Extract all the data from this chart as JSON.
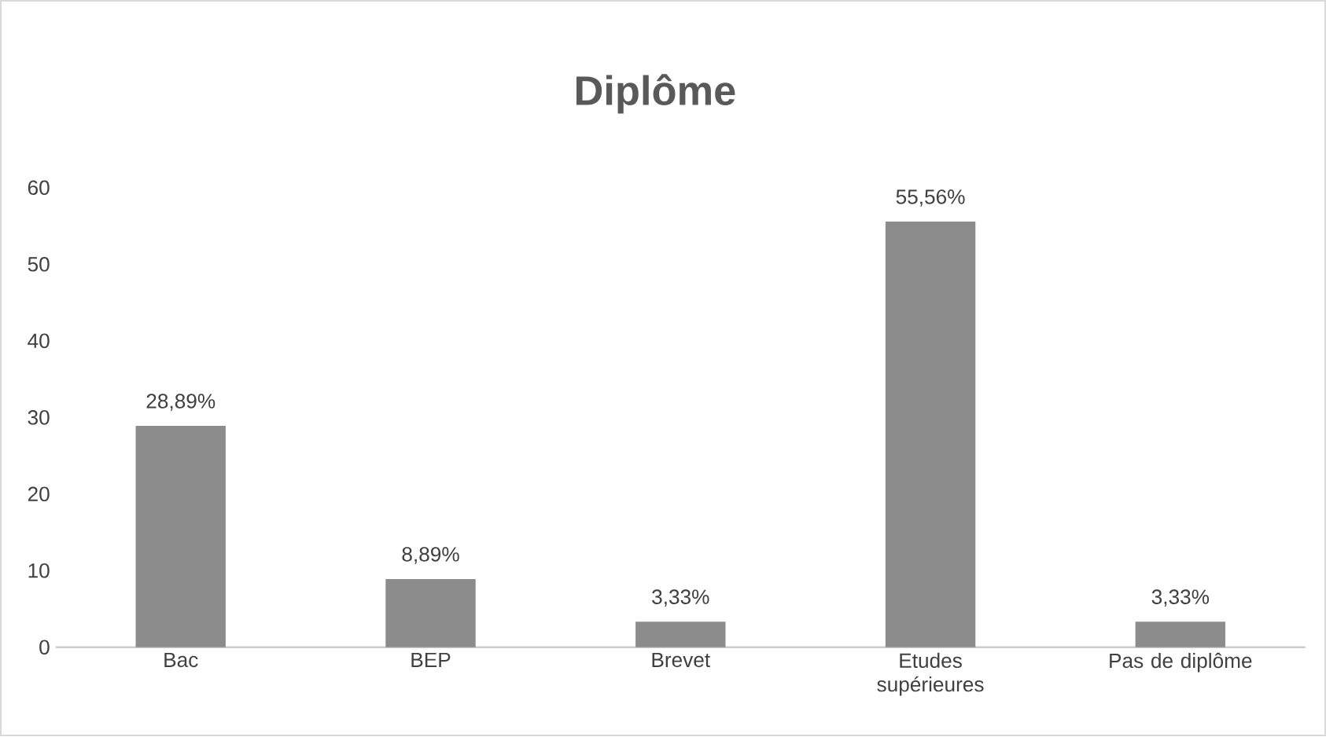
{
  "chart_data": {
    "type": "bar",
    "title": "Diplôme",
    "categories": [
      "Bac",
      "BEP",
      "Brevet",
      "Etudes supérieures",
      "Pas de diplôme"
    ],
    "values": [
      28.89,
      8.89,
      3.33,
      55.56,
      3.33
    ],
    "value_labels": [
      "28,89%",
      "8,89%",
      "3,33%",
      "55,56%",
      "3,33%"
    ],
    "color": "#8c8c8c",
    "ylim": [
      0,
      60
    ],
    "yticks": [
      0,
      10,
      20,
      30,
      40,
      50,
      60
    ]
  }
}
